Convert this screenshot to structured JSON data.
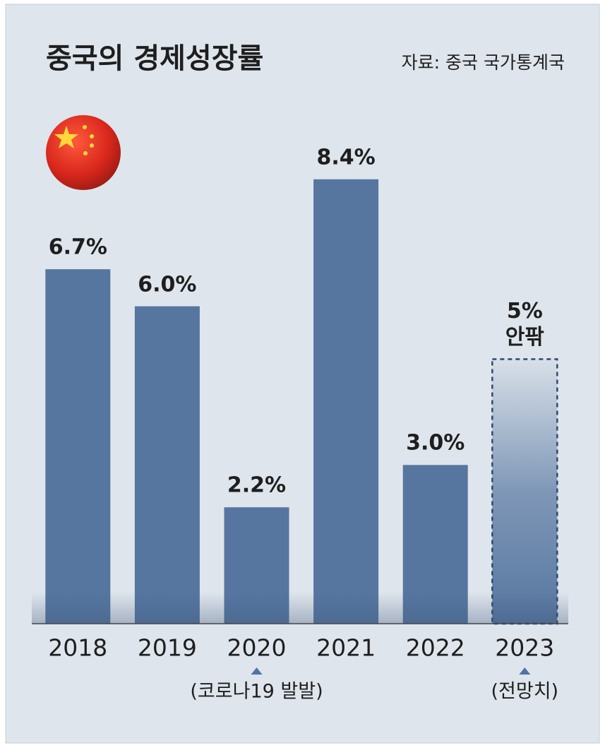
{
  "chart_data": {
    "type": "bar",
    "title": "중국의 경제성장률",
    "source": "자료: 중국 국가통계국",
    "categories": [
      "2018",
      "2019",
      "2020",
      "2021",
      "2022",
      "2023"
    ],
    "values": [
      6.7,
      6.0,
      2.2,
      8.4,
      3.0,
      5
    ],
    "value_labels": [
      "6.7%",
      "6.0%",
      "2.2%",
      "8.4%",
      "3.0%",
      "5% 안팎"
    ],
    "notes": [
      null,
      null,
      "(코로나19 발발)",
      null,
      null,
      "(전망치)"
    ],
    "estimated": [
      false,
      false,
      false,
      false,
      false,
      true
    ],
    "color": "#5676a0",
    "ylim": [
      0,
      10
    ]
  }
}
